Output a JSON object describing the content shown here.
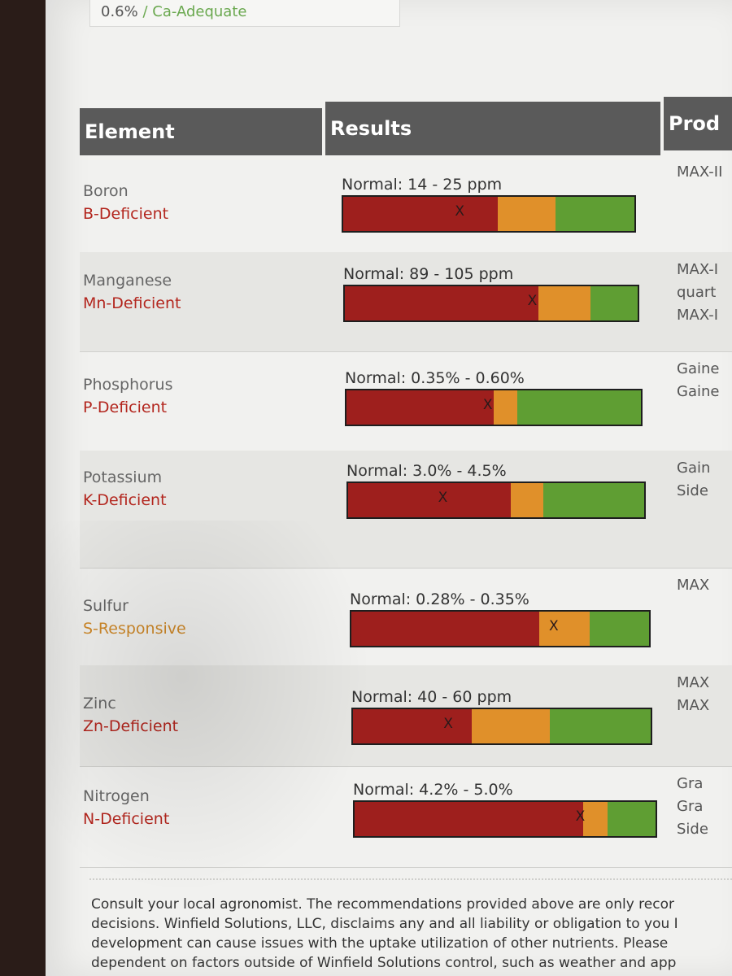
{
  "summary": {
    "value": "0.6%",
    "separator": "/",
    "status": "Ca-Adequate"
  },
  "headers": {
    "element": "Element",
    "results": "Results",
    "products": "Prod"
  },
  "rows": [
    {
      "element": "Boron",
      "status": "B-Deficient",
      "status_type": "deficient",
      "normal": "Normal: 14 - 25 ppm",
      "segments": [
        0.53,
        0.2,
        0.27
      ],
      "marker": 0.4,
      "products": [
        "MAX-II"
      ]
    },
    {
      "element": "Manganese",
      "status": "Mn-Deficient",
      "status_type": "deficient",
      "normal": "Normal: 89 - 105 ppm",
      "segments": [
        0.66,
        0.18,
        0.16
      ],
      "marker": 0.64,
      "products": [
        "MAX-I",
        "quart",
        "MAX-I"
      ]
    },
    {
      "element": "Phosphorus",
      "status": "P-Deficient",
      "status_type": "deficient",
      "normal": "Normal: 0.35% - 0.60%",
      "segments": [
        0.5,
        0.08,
        0.42
      ],
      "marker": 0.48,
      "products": [
        "Gaine",
        "Gaine"
      ]
    },
    {
      "element": "Potassium",
      "status": "K-Deficient",
      "status_type": "deficient",
      "normal": "Normal: 3.0% - 4.5%",
      "segments": [
        0.55,
        0.11,
        0.34
      ],
      "marker": 0.32,
      "products": [
        "Gain",
        "Side"
      ]
    },
    {
      "element": "Sulfur",
      "status": "S-Responsive",
      "status_type": "responsive",
      "normal": "Normal: 0.28% - 0.35%",
      "segments": [
        0.63,
        0.17,
        0.2
      ],
      "marker": 0.68,
      "products": [
        "MAX"
      ]
    },
    {
      "element": "Zinc",
      "status": "Zn-Deficient",
      "status_type": "deficient",
      "normal": "Normal: 40 - 60 ppm",
      "segments": [
        0.4,
        0.26,
        0.34
      ],
      "marker": 0.32,
      "products": [
        "MAX",
        "MAX"
      ]
    },
    {
      "element": "Nitrogen",
      "status": "N-Deficient",
      "status_type": "deficient",
      "normal": "Normal: 4.2% - 5.0%",
      "segments": [
        0.76,
        0.08,
        0.16
      ],
      "marker": 0.75,
      "products": [
        "Gra",
        "Gra",
        "Side"
      ]
    }
  ],
  "footer": [
    "Consult your local agronomist. The recommendations provided above are only recor",
    "decisions. Winfield Solutions, LLC, disclaims any and all liability or obligation to you I",
    "development can cause issues with the uptake utilization of other nutrients. Please",
    "dependent on factors outside of Winfield Solutions control, such as weather and app"
  ],
  "colors": {
    "red": "#9e1f1d",
    "orange": "#e0902a",
    "green": "#5f9e33"
  }
}
